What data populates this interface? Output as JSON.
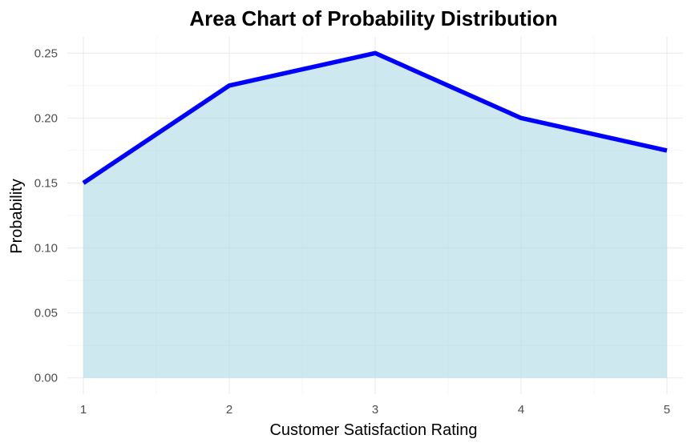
{
  "chart_data": {
    "type": "area",
    "title": "Area Chart of Probability Distribution",
    "xlabel": "Customer Satisfaction Rating",
    "ylabel": "Probability",
    "x": [
      1,
      2,
      3,
      4,
      5
    ],
    "x_tick_labels": [
      "1",
      "2",
      "3",
      "4",
      "5"
    ],
    "values": [
      0.15,
      0.225,
      0.25,
      0.2,
      0.175
    ],
    "y_ticks": [
      0.0,
      0.05,
      0.1,
      0.15,
      0.2,
      0.25
    ],
    "y_tick_labels": [
      "0.00",
      "0.05",
      "0.10",
      "0.15",
      "0.20",
      "0.25"
    ],
    "xlim": [
      0.89,
      5.11
    ],
    "ylim": [
      -0.0125,
      0.2625
    ],
    "grid": true,
    "line_color": "#0000ff",
    "fill_color": "#add8e6"
  }
}
